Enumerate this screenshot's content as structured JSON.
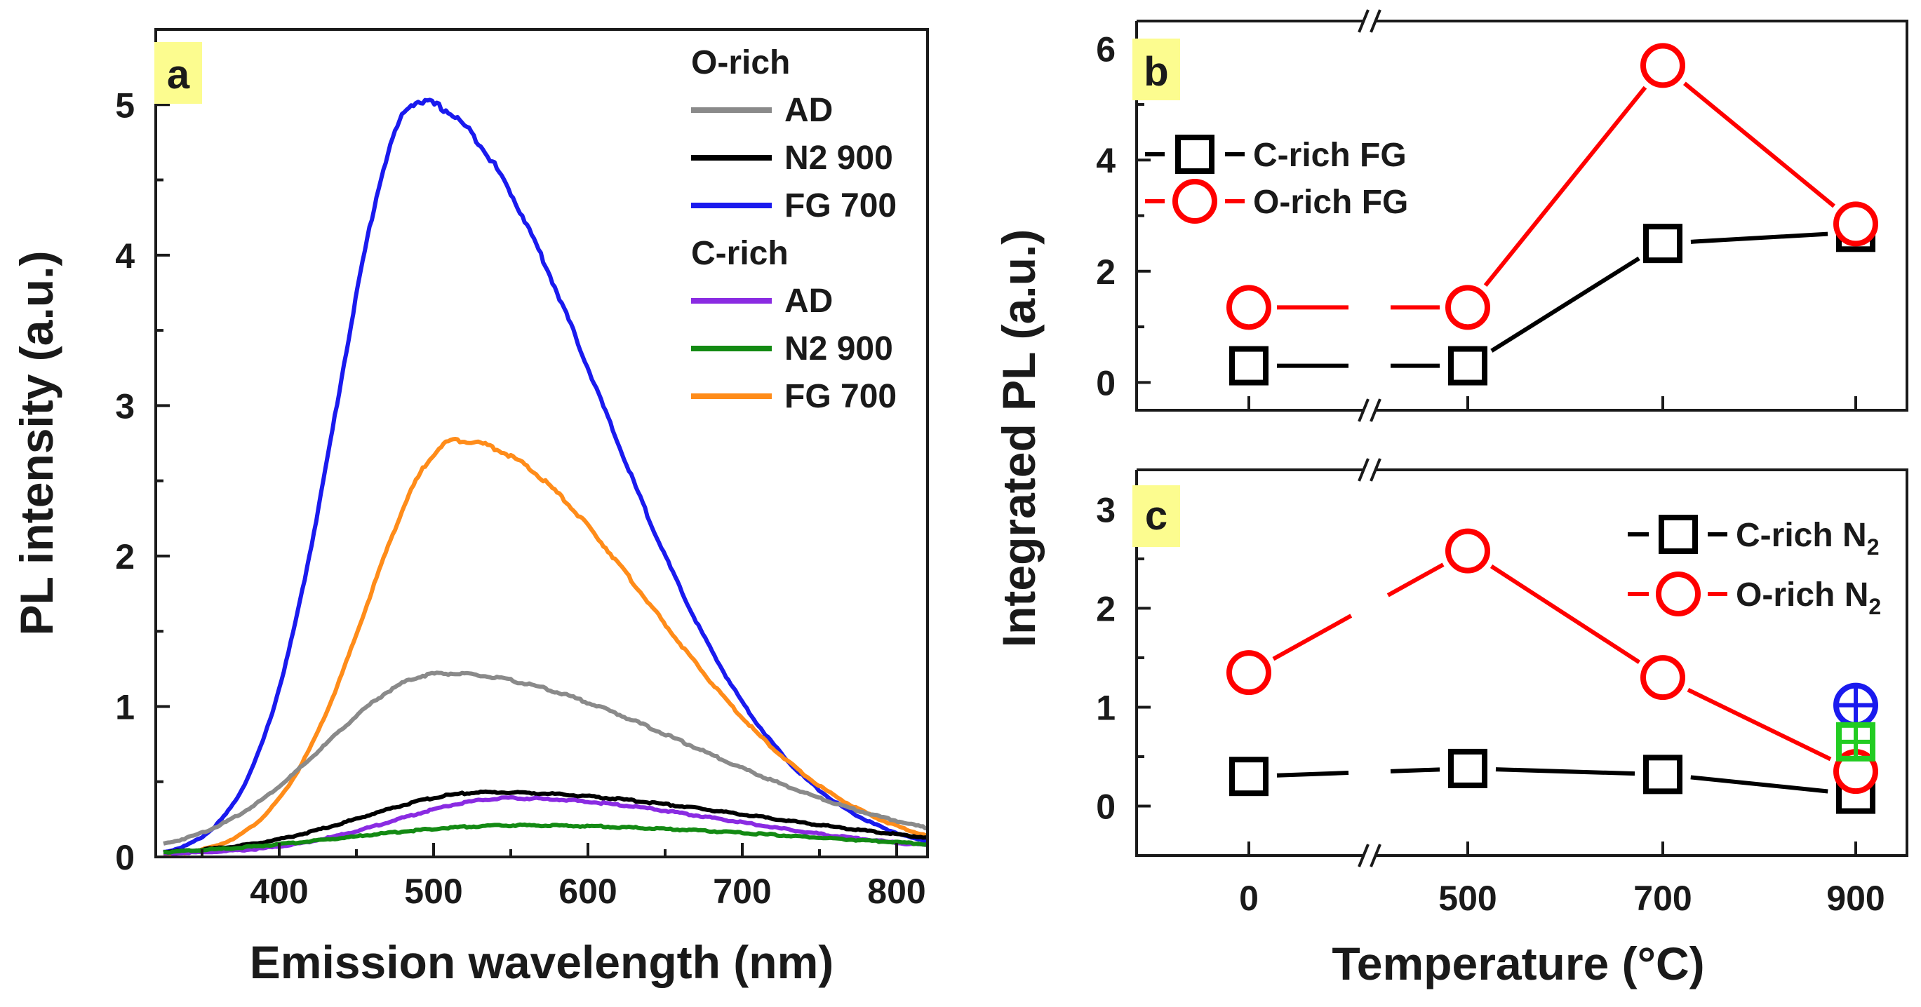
{
  "chart_data": [
    {
      "panel": "a",
      "type": "line",
      "xlabel": "Emission wavelength (nm)",
      "ylabel": "PL intensity (a.u.)",
      "xlim": [
        320,
        820
      ],
      "ylim": [
        0,
        5.5
      ],
      "xticks": [
        "400",
        "500",
        "600",
        "700",
        "800"
      ],
      "yticks": [
        "0",
        "1",
        "2",
        "3",
        "4",
        "5"
      ],
      "legend_groups": [
        {
          "title": "O-rich",
          "entries": [
            {
              "name": "AD",
              "color": "#8a8a8a"
            },
            {
              "name": "N2 900",
              "color": "#000000"
            },
            {
              "name": "FG 700",
              "color": "#1a1aee"
            }
          ]
        },
        {
          "title": "C-rich",
          "entries": [
            {
              "name": "AD",
              "color": "#8a2be2"
            },
            {
              "name": "N2 900",
              "color": "#138a13"
            },
            {
              "name": "FG 700",
              "color": "#ff8c1a"
            }
          ]
        }
      ],
      "series": [
        {
          "name": "O-rich FG 700",
          "color": "#1a1aee",
          "peak": 490,
          "amp": 5.02,
          "sl": 52,
          "sr": 118,
          "base": 0.0
        },
        {
          "name": "C-rich FG 700",
          "color": "#ff8c1a",
          "peak": 515,
          "amp": 2.77,
          "sl": 58,
          "sr": 125,
          "base": 0.0
        },
        {
          "name": "O-rich AD",
          "color": "#8a8a8a",
          "peak": 505,
          "amp": 1.2,
          "sl": 75,
          "sr": 160,
          "base": 0.02
        },
        {
          "name": "O-rich N2 900",
          "color": "#000000",
          "peak": 535,
          "amp": 0.41,
          "sl": 80,
          "sr": 175,
          "base": 0.02
        },
        {
          "name": "C-rich AD",
          "color": "#8a2be2",
          "peak": 550,
          "amp": 0.37,
          "sl": 75,
          "sr": 140,
          "base": 0.02
        },
        {
          "name": "C-rich N2 900",
          "color": "#138a13",
          "peak": 555,
          "amp": 0.2,
          "sl": 110,
          "sr": 190,
          "base": 0.01
        }
      ]
    },
    {
      "panel": "b",
      "type": "line",
      "ylabel": "Integrated PL (a.u.)",
      "ylim": [
        -0.5,
        6.5
      ],
      "yticks": [
        "0",
        "2",
        "4",
        "6"
      ],
      "categories": [
        "0",
        "500",
        "700",
        "900"
      ],
      "series": [
        {
          "name": "C-rich FG",
          "color": "#000000",
          "marker": "square",
          "values": [
            0.3,
            0.3,
            2.5,
            2.7
          ]
        },
        {
          "name": "O-rich FG",
          "color": "#ff0000",
          "marker": "circle",
          "values": [
            1.35,
            1.35,
            5.7,
            2.85
          ]
        }
      ]
    },
    {
      "panel": "c",
      "type": "line",
      "xlabel": "Temperature (°C)",
      "ylim": [
        -0.5,
        3.4
      ],
      "yticks": [
        "0",
        "1",
        "2",
        "3"
      ],
      "categories": [
        "0",
        "500",
        "700",
        "900"
      ],
      "series": [
        {
          "name": "C-rich N",
          "sub": "2",
          "color": "#000000",
          "marker": "square",
          "values": [
            0.3,
            0.38,
            0.32,
            0.12
          ]
        },
        {
          "name": "O-rich N",
          "sub": "2",
          "color": "#ff0000",
          "marker": "circle",
          "values": [
            1.35,
            2.58,
            1.3,
            0.35
          ]
        }
      ],
      "extra_markers": [
        {
          "category": "900",
          "value": 1.02,
          "color": "#1a1aee",
          "marker": "circle-plus"
        },
        {
          "category": "900",
          "value": 0.65,
          "color": "#22cc22",
          "marker": "square-grid"
        }
      ]
    }
  ],
  "labels": {
    "panel_a": "a",
    "panel_b": "b",
    "panel_c": "c",
    "break_mark": "//"
  }
}
